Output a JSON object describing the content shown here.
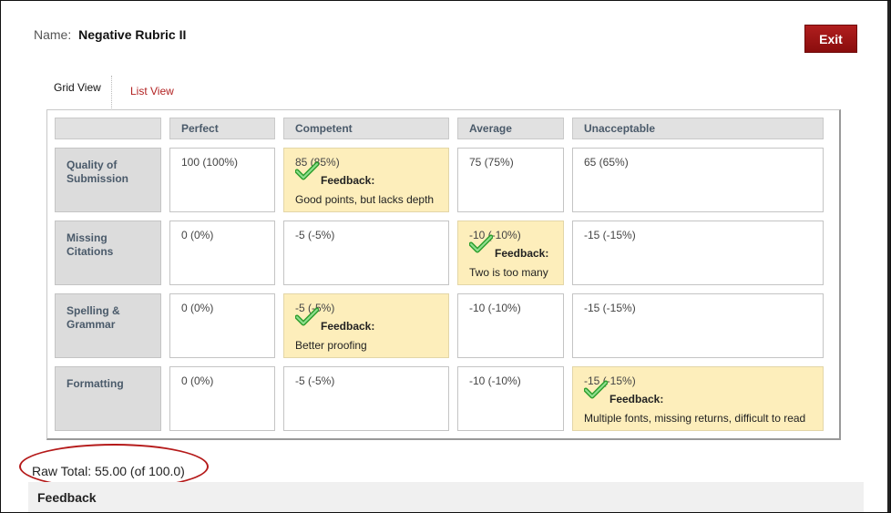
{
  "header": {
    "name_label": "Name:",
    "name_value": "Negative Rubric II",
    "exit_label": "Exit"
  },
  "tabs": [
    {
      "label": "Grid View",
      "active": true
    },
    {
      "label": "List View",
      "active": false
    }
  ],
  "columns": [
    "Perfect",
    "Competent",
    "Average",
    "Unacceptable"
  ],
  "rows": [
    {
      "label": "Quality of Submission",
      "cells": [
        {
          "score": "100 (100%)",
          "selected": false
        },
        {
          "score": "85 (85%)",
          "selected": true,
          "feedback_label": "Feedback:",
          "feedback": "Good points, but lacks depth"
        },
        {
          "score": "75 (75%)",
          "selected": false
        },
        {
          "score": "65 (65%)",
          "selected": false
        }
      ]
    },
    {
      "label": "Missing Citations",
      "cells": [
        {
          "score": "0 (0%)",
          "selected": false
        },
        {
          "score": "-5 (-5%)",
          "selected": false
        },
        {
          "score": "-10 (-10%)",
          "selected": true,
          "feedback_label": "Feedback:",
          "feedback": "Two is too many"
        },
        {
          "score": "-15 (-15%)",
          "selected": false
        }
      ]
    },
    {
      "label": "Spelling & Grammar",
      "cells": [
        {
          "score": "0 (0%)",
          "selected": false
        },
        {
          "score": "-5 (-5%)",
          "selected": true,
          "feedback_label": "Feedback:",
          "feedback": "Better proofing"
        },
        {
          "score": "-10 (-10%)",
          "selected": false
        },
        {
          "score": "-15 (-15%)",
          "selected": false
        }
      ]
    },
    {
      "label": "Formatting",
      "cells": [
        {
          "score": "0 (0%)",
          "selected": false
        },
        {
          "score": "-5 (-5%)",
          "selected": false
        },
        {
          "score": "-10 (-10%)",
          "selected": false
        },
        {
          "score": "-15 (-15%)",
          "selected": true,
          "feedback_label": "Feedback:",
          "feedback": "Multiple fonts, missing returns, difficult to read"
        }
      ]
    }
  ],
  "raw_total": "Raw Total: 55.00 (of 100.0)",
  "feedback_section": {
    "title": "Feedback"
  },
  "colors": {
    "exit_button": "#9b1414",
    "selected_cell": "#fdeebb",
    "list_view_link": "#b22222",
    "annotation": "#b51a1a"
  }
}
